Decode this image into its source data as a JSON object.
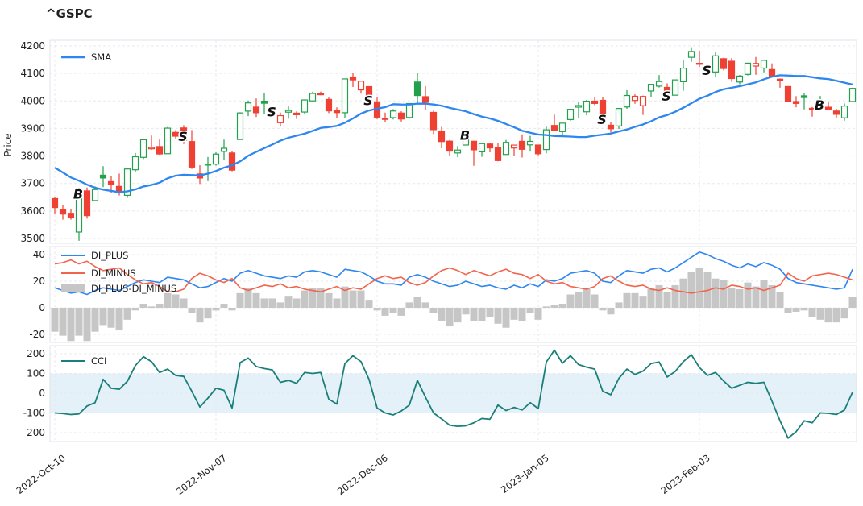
{
  "title": "^GSPC",
  "price_panel": {
    "ylabel": "Price",
    "legend_sma": "SMA",
    "yticks": [
      4200,
      4100,
      4000,
      3900,
      3800,
      3700,
      3600,
      3500
    ]
  },
  "dmi_panel": {
    "legend": [
      "DI_PLUS",
      "DI_MINUS",
      "DI_PLUS-DI_MINUS"
    ],
    "yticks": [
      40,
      20,
      0,
      -20
    ]
  },
  "cci_panel": {
    "legend_cci": "CCI",
    "yticks": [
      200,
      100,
      0,
      -100,
      -200
    ],
    "band": [
      -100,
      100
    ]
  },
  "x_axis": {
    "tick_labels": [
      "2022-Oct-10",
      "2022-Nov-07",
      "2022-Dec-06",
      "2023-Jan-05",
      "2023-Feb-03"
    ],
    "tick_indices": [
      0,
      20,
      40,
      60,
      80
    ]
  },
  "colors": {
    "up": "#22a14c",
    "down": "#ef4034",
    "sma": "#2e86f0",
    "di_plus": "#2e86f0",
    "di_minus": "#f2644b",
    "histogram": "#c6c6c6",
    "cci": "#1b7f79",
    "band_fill": "#e4f1f8",
    "grid": "#e6e9ee",
    "panel_border": "#dfe3e8",
    "marker_text": "#111111"
  },
  "chart_data": {
    "type": "candlestick",
    "symbol": "^GSPC",
    "panels": [
      "Price with SMA and B/S trade markers",
      "DI_PLUS / DI_MINUS lines with DI_PLUS-DI_MINUS histogram",
      "CCI with -100..100 band"
    ],
    "ylim_price": [
      3482,
      4220
    ],
    "ylim_dmi": [
      -26,
      46
    ],
    "ylim_cci": [
      -277,
      237
    ],
    "dates": [
      "2022-10-10",
      "2022-10-11",
      "2022-10-12",
      "2022-10-13",
      "2022-10-14",
      "2022-10-17",
      "2022-10-18",
      "2022-10-19",
      "2022-10-20",
      "2022-10-21",
      "2022-10-24",
      "2022-10-25",
      "2022-10-26",
      "2022-10-27",
      "2022-10-28",
      "2022-10-31",
      "2022-11-01",
      "2022-11-02",
      "2022-11-03",
      "2022-11-04",
      "2022-11-07",
      "2022-11-08",
      "2022-11-09",
      "2022-11-10",
      "2022-11-11",
      "2022-11-14",
      "2022-11-15",
      "2022-11-16",
      "2022-11-17",
      "2022-11-18",
      "2022-11-21",
      "2022-11-22",
      "2022-11-23",
      "2022-11-25",
      "2022-11-28",
      "2022-11-29",
      "2022-11-30",
      "2022-12-01",
      "2022-12-02",
      "2022-12-05",
      "2022-12-06",
      "2022-12-07",
      "2022-12-08",
      "2022-12-09",
      "2022-12-12",
      "2022-12-13",
      "2022-12-14",
      "2022-12-15",
      "2022-12-16",
      "2022-12-19",
      "2022-12-20",
      "2022-12-21",
      "2022-12-22",
      "2022-12-23",
      "2022-12-27",
      "2022-12-28",
      "2022-12-29",
      "2022-12-30",
      "2023-01-03",
      "2023-01-04",
      "2023-01-05",
      "2023-01-06",
      "2023-01-09",
      "2023-01-10",
      "2023-01-11",
      "2023-01-12",
      "2023-01-13",
      "2023-01-17",
      "2023-01-18",
      "2023-01-19",
      "2023-01-20",
      "2023-01-23",
      "2023-01-24",
      "2023-01-25",
      "2023-01-26",
      "2023-01-27",
      "2023-01-30",
      "2023-01-31",
      "2023-02-01",
      "2023-02-02",
      "2023-02-03",
      "2023-02-06",
      "2023-02-07",
      "2023-02-08",
      "2023-02-09",
      "2023-02-10",
      "2023-02-13",
      "2023-02-14",
      "2023-02-15",
      "2023-02-16",
      "2023-02-17",
      "2023-02-21",
      "2023-02-22",
      "2023-02-23",
      "2023-02-24",
      "2023-02-27",
      "2023-02-28",
      "2023-03-01",
      "2023-03-02",
      "2023-03-03"
    ],
    "ohlc": [
      [
        3645.0,
        3652.0,
        3591.0,
        3612.39
      ],
      [
        3606.06,
        3620.26,
        3568.45,
        3588.84
      ],
      [
        3591.57,
        3607.34,
        3568.56,
        3577.03
      ],
      [
        3523.53,
        3684.62,
        3491.58,
        3669.91
      ],
      [
        3673.06,
        3685.42,
        3572.2,
        3583.07
      ],
      [
        3637.99,
        3689.33,
        3637.99,
        3677.95
      ],
      [
        3730.23,
        3762.79,
        3686.75,
        3719.98
      ],
      [
        3706.85,
        3728.32,
        3666.4,
        3695.16
      ],
      [
        3689.4,
        3736.0,
        3656.44,
        3665.78
      ],
      [
        3657.04,
        3756.0,
        3647.42,
        3752.75
      ],
      [
        3749.88,
        3810.74,
        3741.25,
        3797.34
      ],
      [
        3795.01,
        3860.17,
        3788.51,
        3859.11
      ],
      [
        3826.02,
        3874.35,
        3822.11,
        3830.6
      ],
      [
        3834.11,
        3859.95,
        3803.79,
        3807.3
      ],
      [
        3808.26,
        3905.42,
        3808.26,
        3901.06
      ],
      [
        3885.75,
        3893.82,
        3863.76,
        3871.98
      ],
      [
        3901.79,
        3911.79,
        3843.58,
        3856.1
      ],
      [
        3852.36,
        3894.24,
        3752.75,
        3759.69
      ],
      [
        3734.78,
        3766.62,
        3698.15,
        3719.89
      ],
      [
        3766.88,
        3796.34,
        3708.43,
        3770.55
      ],
      [
        3770.36,
        3813.21,
        3764.71,
        3806.8
      ],
      [
        3816.69,
        3859.4,
        3786.3,
        3828.11
      ],
      [
        3810.93,
        3818.39,
        3744.22,
        3748.57
      ],
      [
        3859.89,
        3958.79,
        3859.89,
        3956.37
      ],
      [
        3963.09,
        4001.48,
        3944.82,
        3992.93
      ],
      [
        3977.64,
        4008.97,
        3941.67,
        3957.25
      ],
      [
        3999.17,
        4028.84,
        3953.31,
        3991.73
      ],
      [
        3974.19,
        3982.38,
        3951.26,
        3958.79
      ],
      [
        3920.93,
        3958.0,
        3906.54,
        3946.56
      ],
      [
        3959.24,
        3979.87,
        3935.29,
        3965.34
      ],
      [
        3955.63,
        3962.0,
        3934.51,
        3949.94
      ],
      [
        3959.65,
        4005.88,
        3951.36,
        4003.58
      ],
      [
        4000.3,
        4033.71,
        3998.66,
        4027.26
      ],
      [
        4023.34,
        4034.02,
        4020.76,
        4026.12
      ],
      [
        4005.36,
        4012.27,
        3955.77,
        3963.94
      ],
      [
        3964.19,
        3976.77,
        3937.65,
        3957.63
      ],
      [
        3957.18,
        4080.11,
        3938.58,
        4080.11
      ],
      [
        4087.14,
        4100.51,
        4050.87,
        4076.57
      ],
      [
        4040.17,
        4072.84,
        4026.63,
        4071.7
      ],
      [
        4052.02,
        4052.47,
        3984.17,
        3998.84
      ],
      [
        3996.63,
        4014.46,
        3933.82,
        3941.26
      ],
      [
        3936.36,
        3957.64,
        3922.09,
        3933.92
      ],
      [
        3939.31,
        3970.52,
        3932.71,
        3963.51
      ],
      [
        3956.04,
        3962.45,
        3925.11,
        3934.38
      ],
      [
        3939.81,
        3990.68,
        3935.51,
        3990.56
      ],
      [
        4068.64,
        4100.96,
        3993.03,
        4019.65
      ],
      [
        4015.54,
        4053.76,
        3965.61,
        3995.32
      ],
      [
        3958.37,
        3964.89,
        3879.45,
        3895.75
      ],
      [
        3890.91,
        3906.0,
        3827.91,
        3852.36
      ],
      [
        3853.79,
        3857.66,
        3800.04,
        3817.66
      ],
      [
        3810.96,
        3836.16,
        3795.62,
        3821.62
      ],
      [
        3839.74,
        3889.83,
        3839.74,
        3878.44
      ],
      [
        3853.48,
        3853.48,
        3764.49,
        3822.39
      ],
      [
        3815.11,
        3845.8,
        3797.01,
        3844.82
      ],
      [
        3843.34,
        3846.65,
        3813.22,
        3829.25
      ],
      [
        3829.56,
        3848.32,
        3780.78,
        3783.22
      ],
      [
        3805.45,
        3858.19,
        3805.45,
        3849.28
      ],
      [
        3829.06,
        3839.85,
        3800.34,
        3839.5
      ],
      [
        3853.29,
        3878.46,
        3794.33,
        3824.14
      ],
      [
        3840.36,
        3873.16,
        3815.77,
        3852.97
      ],
      [
        3839.74,
        3839.74,
        3802.42,
        3808.1
      ],
      [
        3823.37,
        3906.19,
        3809.56,
        3895.08
      ],
      [
        3910.82,
        3950.57,
        3890.42,
        3892.09
      ],
      [
        3888.57,
        3919.83,
        3877.29,
        3919.25
      ],
      [
        3932.35,
        3970.07,
        3928.54,
        3969.61
      ],
      [
        3977.57,
        3997.76,
        3937.56,
        3983.17
      ],
      [
        3960.6,
        4003.95,
        3947.67,
        3999.09
      ],
      [
        3999.28,
        4015.39,
        3984.57,
        3990.97
      ],
      [
        4002.25,
        4014.16,
        3926.59,
        3928.86
      ],
      [
        3911.84,
        3922.94,
        3885.54,
        3898.85
      ],
      [
        3909.04,
        3972.96,
        3897.86,
        3972.61
      ],
      [
        3978.14,
        4039.31,
        3971.64,
        4019.81
      ],
      [
        4001.74,
        4023.92,
        3989.79,
        4016.95
      ],
      [
        3982.71,
        4019.55,
        3949.06,
        4016.22
      ],
      [
        4036.08,
        4061.57,
        4013.29,
        4060.43
      ],
      [
        4053.72,
        4094.21,
        4048.7,
        4070.56
      ],
      [
        4049.27,
        4063.85,
        4015.55,
        4017.77
      ],
      [
        4020.85,
        4077.16,
        4020.44,
        4076.6
      ],
      [
        4070.07,
        4148.95,
        4037.2,
        4119.21
      ],
      [
        4158.68,
        4195.44,
        4141.88,
        4179.76
      ],
      [
        4136.69,
        4182.36,
        4123.36,
        4136.48
      ],
      [
        4119.57,
        4124.63,
        4093.38,
        4111.08
      ],
      [
        4105.35,
        4176.54,
        4088.39,
        4164.0
      ],
      [
        4153.47,
        4156.86,
        4111.14,
        4117.86
      ],
      [
        4144.25,
        4156.23,
        4069.67,
        4081.5
      ],
      [
        4068.88,
        4094.36,
        4060.79,
        4090.46
      ],
      [
        4096.62,
        4138.02,
        4092.66,
        4137.29
      ],
      [
        4126.7,
        4159.77,
        4095.01,
        4136.13
      ],
      [
        4119.5,
        4148.11,
        4103.98,
        4147.6
      ],
      [
        4114.02,
        4136.54,
        4089.49,
        4090.41
      ],
      [
        4077.39,
        4081.51,
        4047.95,
        4079.09
      ],
      [
        4052.35,
        4052.35,
        3995.19,
        3997.34
      ],
      [
        3998.04,
        4017.37,
        3976.9,
        3991.05
      ],
      [
        4018.6,
        4028.3,
        3969.19,
        4012.32
      ],
      [
        3973.24,
        3978.25,
        3943.08,
        3970.04
      ],
      [
        3992.36,
        4018.05,
        3973.55,
        3982.24
      ],
      [
        3977.19,
        3997.5,
        3968.98,
        3970.15
      ],
      [
        3963.34,
        3971.73,
        3939.05,
        3951.39
      ],
      [
        3938.68,
        3990.84,
        3928.16,
        3981.35
      ],
      [
        3998.02,
        4048.29,
        3995.17,
        4045.64
      ]
    ],
    "sma": [
      3757.4,
      3740.2,
      3721.7,
      3710.1,
      3695.6,
      3684.5,
      3677.7,
      3673.0,
      3668.4,
      3671.4,
      3678.5,
      3689.1,
      3694.6,
      3703.0,
      3718.8,
      3728.4,
      3731.7,
      3730.5,
      3729.3,
      3735.8,
      3745.5,
      3757.5,
      3766.1,
      3780.4,
      3800.9,
      3814.9,
      3828.5,
      3841.6,
      3855.7,
      3866.3,
      3873.9,
      3881.2,
      3891.0,
      3901.9,
      3905.1,
      3909.4,
      3920.6,
      3936.4,
      3954.0,
      3965.4,
      3972.1,
      3977.4,
      3988.2,
      3987.1,
      3987.0,
      3990.1,
      3990.2,
      3987.1,
      3982.4,
      3975.0,
      3968.6,
      3962.3,
      3952.1,
      3943.0,
      3936.3,
      3927.6,
      3916.0,
      3904.2,
      3891.8,
      3884.5,
      3877.8,
      3875.9,
      3872.3,
      3871.6,
      3870.5,
      3868.7,
      3868.9,
      3873.7,
      3877.5,
      3881.5,
      3889.1,
      3896.2,
      3905.9,
      3914.5,
      3926.0,
      3940.4,
      3948.8,
      3960.7,
      3975.4,
      3991.7,
      4008.2,
      4019.0,
      4032.6,
      4042.5,
      4048.1,
      4053.5,
      4060.4,
      4067.6,
      4078.6,
      4088.1,
      4093.5,
      4092.3,
      4091.0,
      4090.8,
      4086.3,
      4081.9,
      4079.5,
      4073.3,
      4066.4,
      4059.7
    ],
    "di_plus": [
      15,
      13,
      11,
      12,
      10,
      13,
      15,
      14,
      13,
      16,
      19,
      21,
      20,
      19,
      23,
      22,
      21,
      18,
      15,
      16,
      19,
      22,
      20,
      26,
      28,
      26,
      24,
      23,
      22,
      24,
      23,
      27,
      28,
      27,
      25,
      23,
      29,
      28,
      27,
      24,
      20,
      18,
      18,
      17,
      23,
      25,
      23,
      20,
      18,
      16,
      17,
      20,
      18,
      16,
      17,
      15,
      14,
      17,
      15,
      18,
      16,
      21,
      20,
      22,
      26,
      27,
      28,
      26,
      20,
      19,
      24,
      28,
      27,
      26,
      29,
      30,
      27,
      30,
      34,
      38,
      42,
      40,
      37,
      35,
      32,
      30,
      33,
      31,
      34,
      32,
      29,
      22,
      19,
      18,
      17,
      16,
      15,
      14,
      15,
      29
    ],
    "di_minus": [
      33,
      34,
      36,
      33,
      35,
      31,
      28,
      29,
      30,
      25,
      21,
      18,
      19,
      16,
      12,
      12,
      14,
      22,
      26,
      24,
      21,
      19,
      22,
      15,
      13,
      15,
      17,
      16,
      18,
      15,
      16,
      14,
      13,
      12,
      14,
      16,
      13,
      15,
      14,
      18,
      22,
      24,
      22,
      23,
      19,
      17,
      19,
      24,
      28,
      30,
      28,
      25,
      28,
      26,
      24,
      27,
      29,
      26,
      25,
      22,
      25,
      20,
      18,
      19,
      16,
      15,
      14,
      16,
      22,
      24,
      20,
      17,
      16,
      17,
      14,
      13,
      15,
      13,
      12,
      11,
      12,
      13,
      15,
      14,
      17,
      16,
      14,
      15,
      13,
      15,
      17,
      26,
      22,
      20,
      24,
      25,
      26,
      25,
      23,
      21
    ],
    "cci": [
      -100,
      -103,
      -108,
      -105,
      -65,
      -48,
      70,
      25,
      20,
      60,
      140,
      185,
      160,
      105,
      122,
      90,
      85,
      10,
      -70,
      -25,
      25,
      15,
      -75,
      155,
      178,
      135,
      125,
      118,
      55,
      65,
      50,
      105,
      100,
      105,
      -30,
      -55,
      150,
      190,
      160,
      70,
      -75,
      -100,
      -110,
      -90,
      -60,
      65,
      -20,
      -100,
      -130,
      -162,
      -168,
      -165,
      -150,
      -128,
      -132,
      -60,
      -88,
      -72,
      -85,
      -48,
      -78,
      158,
      218,
      152,
      190,
      145,
      132,
      122,
      10,
      -8,
      75,
      122,
      95,
      112,
      150,
      158,
      82,
      110,
      160,
      195,
      130,
      90,
      105,
      62,
      25,
      40,
      55,
      50,
      55,
      -40,
      -140,
      -228,
      -195,
      -140,
      -150,
      -100,
      -102,
      -108,
      -85,
      5
    ],
    "trade_markers": [
      {
        "index": 3,
        "date": "2022-10-13",
        "label": "B",
        "price": 3663
      },
      {
        "index": 16,
        "date": "2022-11-01",
        "label": "S",
        "price": 3872
      },
      {
        "index": 27,
        "date": "2022-11-16",
        "label": "S",
        "price": 3962
      },
      {
        "index": 39,
        "date": "2022-12-05",
        "label": "S",
        "price": 4002
      },
      {
        "index": 51,
        "date": "2022-12-21",
        "label": "B",
        "price": 3876
      },
      {
        "index": 68,
        "date": "2023-01-18",
        "label": "S",
        "price": 3934
      },
      {
        "index": 76,
        "date": "2023-01-30",
        "label": "S",
        "price": 4018
      },
      {
        "index": 81,
        "date": "2023-02-06",
        "label": "S",
        "price": 4112
      },
      {
        "index": 95,
        "date": "2023-02-27",
        "label": "B",
        "price": 3986
      }
    ]
  }
}
